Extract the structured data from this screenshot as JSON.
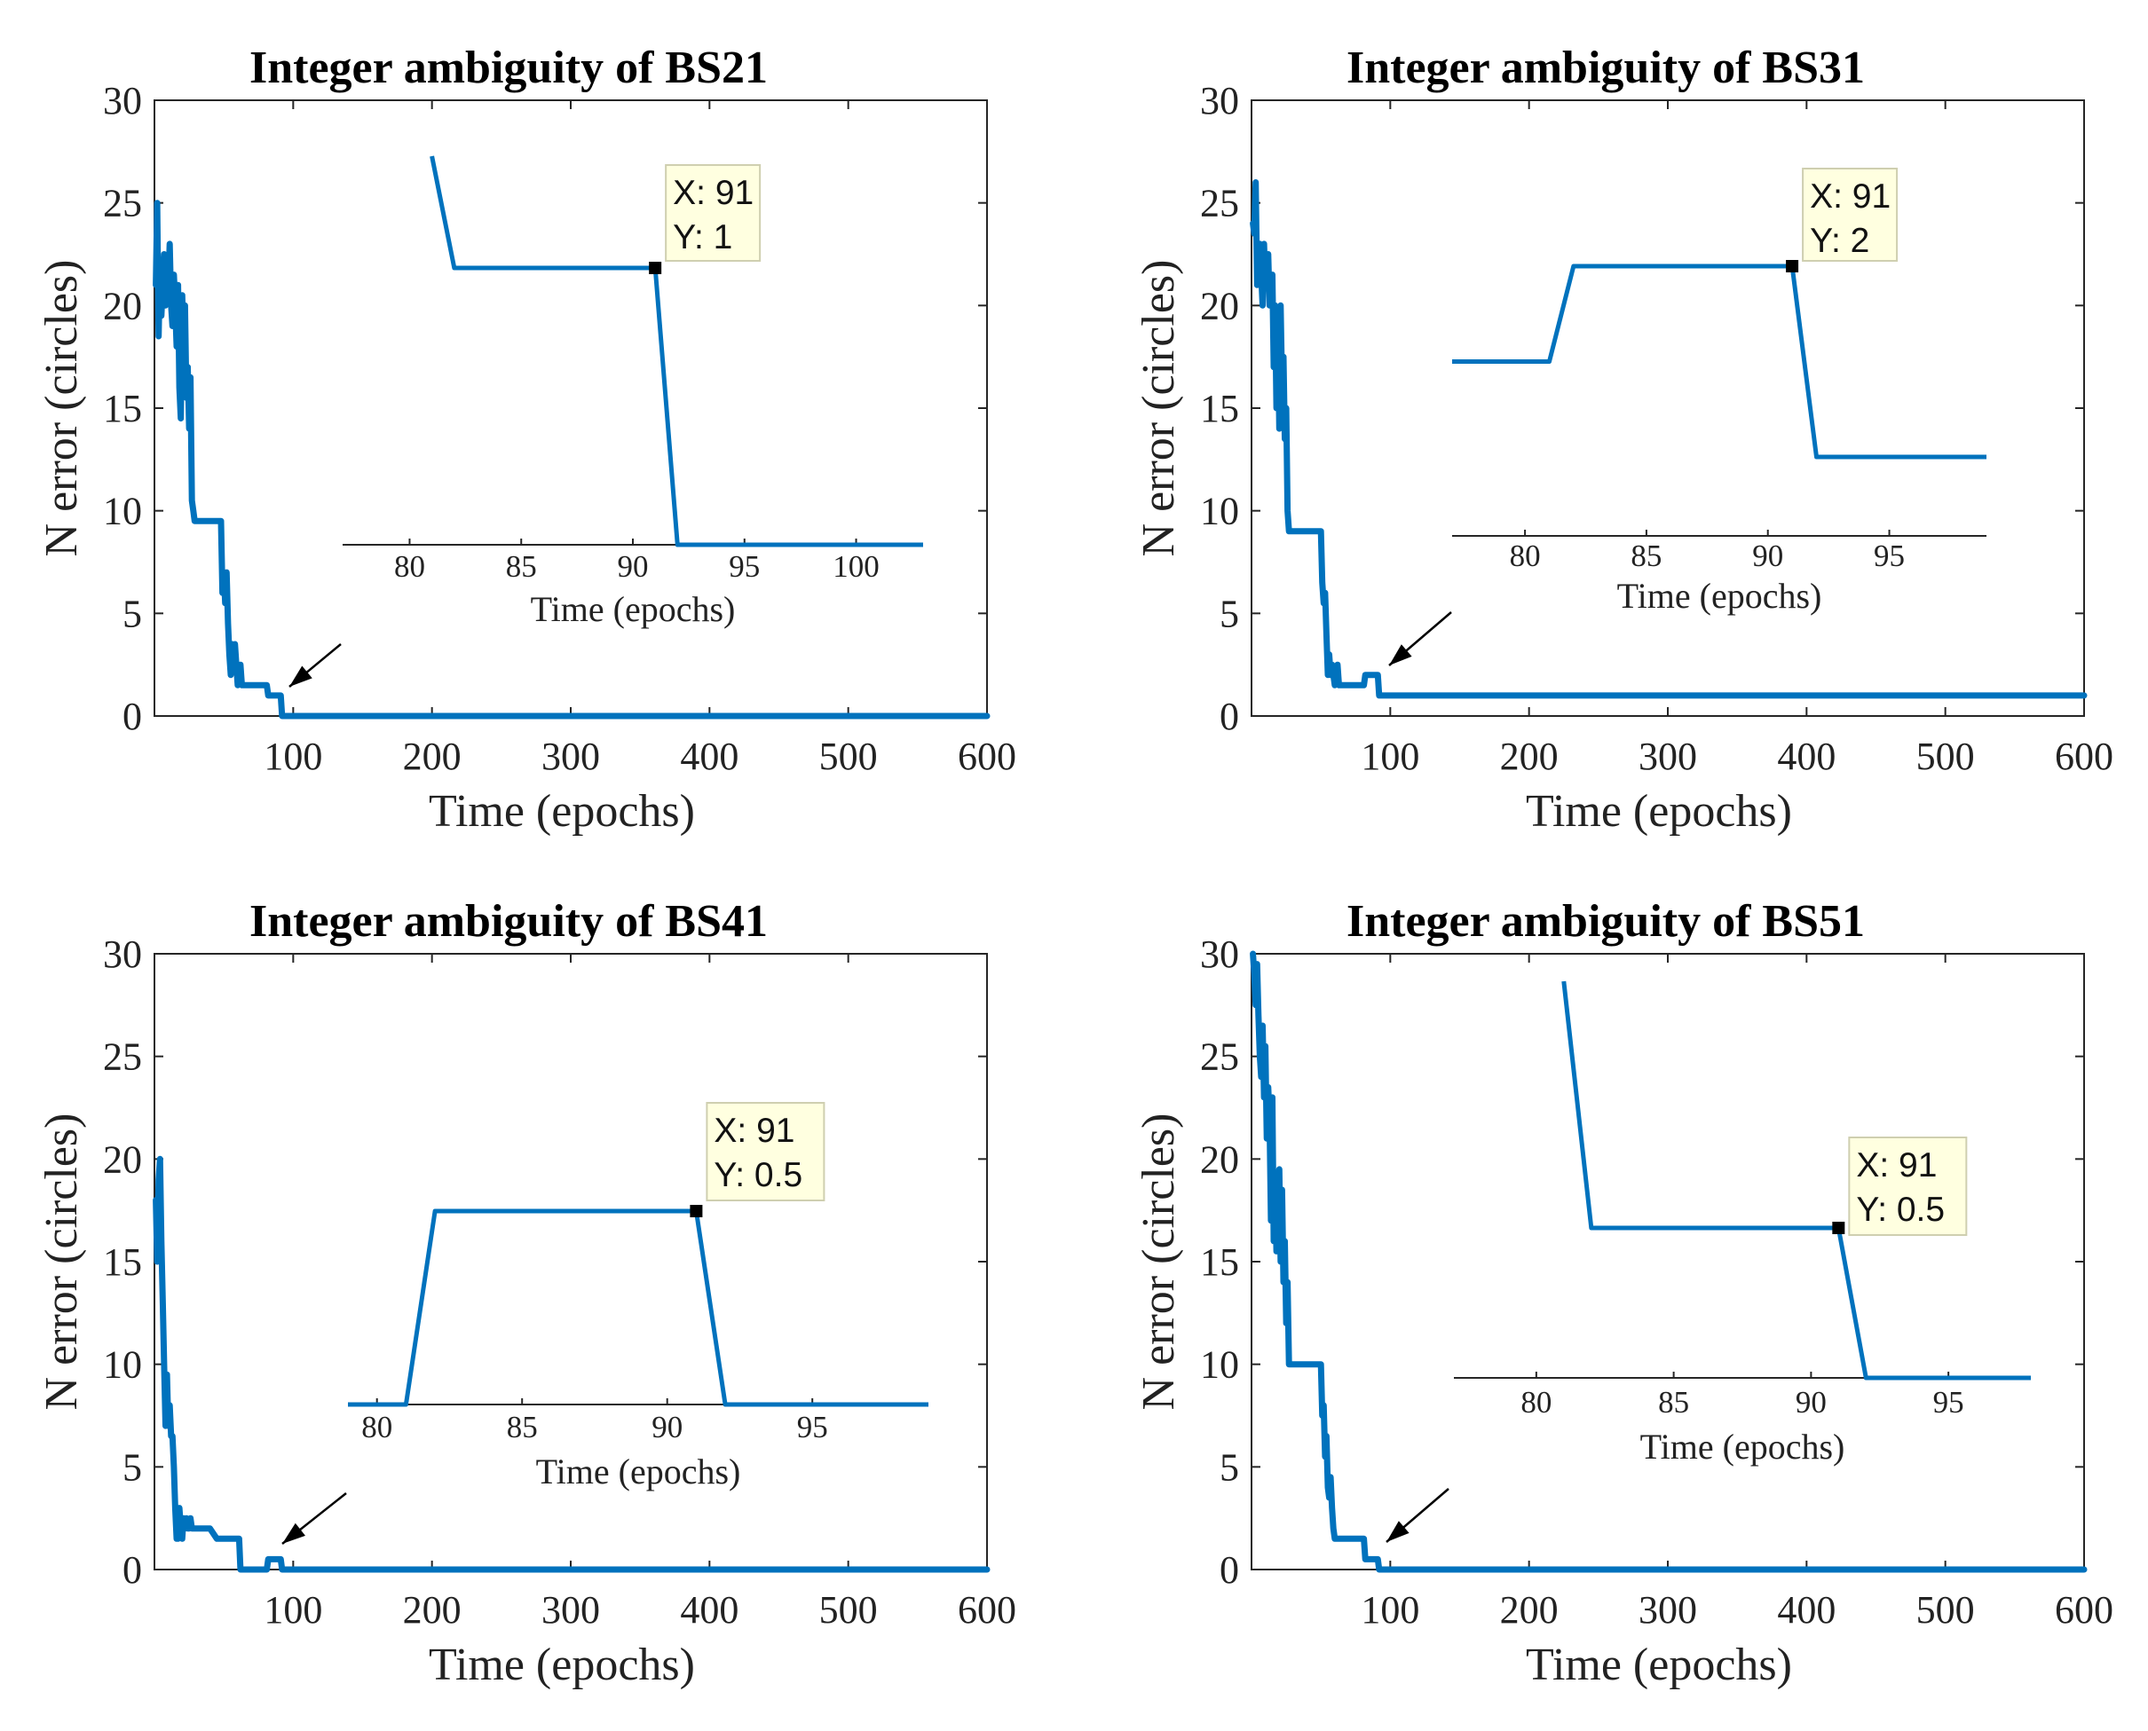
{
  "chart_data": [
    {
      "type": "line",
      "title": "Integer ambiguity of BS21",
      "xlabel": "Time (epochs)",
      "ylabel": "N error (circles)",
      "xlim": [
        0,
        600
      ],
      "ylim": [
        0,
        30
      ],
      "xticks": [
        100,
        200,
        300,
        400,
        500,
        600
      ],
      "yticks": [
        0,
        5,
        10,
        15,
        20,
        25,
        30
      ],
      "grid": false,
      "color": "#0072BD",
      "series": [
        {
          "x": [
            1,
            2,
            3,
            4,
            5,
            6,
            7,
            8,
            9,
            10,
            11,
            12,
            13,
            14,
            15,
            16,
            17,
            18,
            19,
            20,
            21,
            22,
            23,
            24,
            25,
            26,
            27,
            28,
            29,
            30,
            31,
            32,
            33,
            34,
            35,
            36,
            37,
            38,
            39,
            40,
            45,
            48,
            49,
            50,
            51,
            52,
            53,
            54,
            55,
            56,
            57,
            58,
            60,
            62,
            63,
            64,
            65,
            70,
            75,
            80,
            81,
            82,
            88,
            90,
            91,
            92,
            100,
            200,
            300,
            400,
            500,
            600
          ],
          "y": [
            21,
            25,
            18.5,
            22,
            19.5,
            21,
            22.5,
            20,
            22,
            21,
            23,
            20,
            19,
            21.5,
            20,
            18,
            21,
            16,
            14.5,
            20.5,
            18,
            20,
            15.5,
            17,
            14,
            16.5,
            10.5,
            10,
            9.5,
            9.5,
            9.5,
            9.5,
            9.5,
            9.5,
            9.5,
            9.5,
            9.5,
            9.5,
            9.5,
            9.5,
            9.5,
            9.5,
            6,
            7,
            5.5,
            7,
            4.5,
            3,
            2,
            3.5,
            2.5,
            3.5,
            1.5,
            2.5,
            1.5,
            1.5,
            1.5,
            1.5,
            1.5,
            1.5,
            1.5,
            1,
            1,
            1,
            1,
            0,
            0,
            0,
            0,
            0,
            0,
            0
          ]
        }
      ],
      "inset": {
        "xlabel": "Time (epochs)",
        "xlim": [
          77,
          103
        ],
        "xticks": [
          80,
          85,
          90,
          95,
          100
        ],
        "x": [
          81,
          82,
          91,
          92,
          103
        ],
        "y": [
          1.5,
          1,
          1,
          0,
          0
        ],
        "datatip": {
          "x_text": "X: 91",
          "y_text": "Y: 1",
          "x": 91,
          "y": 1
        }
      }
    },
    {
      "type": "line",
      "title": "Integer ambiguity of BS31",
      "xlabel": "Time (epochs)",
      "ylabel": "N error (circles)",
      "xlim": [
        0,
        600
      ],
      "ylim": [
        0,
        30
      ],
      "xticks": [
        100,
        200,
        300,
        400,
        500,
        600
      ],
      "yticks": [
        0,
        5,
        10,
        15,
        20,
        25,
        30
      ],
      "grid": false,
      "color": "#0072BD",
      "series": [
        {
          "x": [
            1,
            2,
            3,
            4,
            5,
            6,
            7,
            8,
            9,
            10,
            11,
            12,
            13,
            14,
            15,
            16,
            17,
            18,
            19,
            20,
            21,
            22,
            23,
            24,
            25,
            26,
            27,
            28,
            29,
            30,
            31,
            32,
            33,
            34,
            35,
            36,
            37,
            38,
            39,
            40,
            45,
            50,
            51,
            52,
            53,
            54,
            55,
            56,
            57,
            58,
            60,
            62,
            63,
            65,
            70,
            75,
            80,
            81,
            82,
            88,
            90,
            91,
            92,
            100,
            200,
            300,
            400,
            500,
            600
          ],
          "y": [
            24,
            23.5,
            26,
            21,
            22,
            23,
            21.5,
            20,
            23,
            21,
            22,
            22.5,
            20,
            20,
            21.5,
            17,
            20,
            15,
            19.5,
            14,
            20,
            16,
            17.5,
            13.5,
            15,
            10,
            9,
            9,
            9,
            9,
            9,
            9,
            9,
            9,
            9,
            9,
            9,
            9,
            9,
            9,
            9,
            9,
            6.5,
            5.5,
            6,
            4,
            2,
            3,
            2,
            2.5,
            1.5,
            2.5,
            1.5,
            1.5,
            1.5,
            1.5,
            1.5,
            1.5,
            2,
            2,
            2,
            2,
            1,
            1,
            1,
            1,
            1,
            1,
            1
          ]
        }
      ],
      "inset": {
        "xlabel": "Time (epochs)",
        "xlim": [
          77,
          99
        ],
        "xticks": [
          80,
          85,
          90,
          95
        ],
        "x": [
          77,
          81,
          82,
          91,
          92,
          99
        ],
        "y": [
          1.5,
          1.5,
          2,
          2,
          1,
          1
        ],
        "datatip": {
          "x_text": "X: 91",
          "y_text": "Y: 2",
          "x": 91,
          "y": 2
        }
      }
    },
    {
      "type": "line",
      "title": "Integer ambiguity of BS41",
      "xlabel": "Time (epochs)",
      "ylabel": "N error (circles)",
      "xlim": [
        0,
        600
      ],
      "ylim": [
        0,
        30
      ],
      "xticks": [
        100,
        200,
        300,
        400,
        500,
        600
      ],
      "yticks": [
        0,
        5,
        10,
        15,
        20,
        25,
        30
      ],
      "grid": false,
      "color": "#0072BD",
      "series": [
        {
          "x": [
            1,
            2,
            3,
            4,
            5,
            6,
            7,
            8,
            9,
            10,
            11,
            12,
            13,
            14,
            15,
            16,
            17,
            18,
            19,
            20,
            21,
            22,
            23,
            24,
            25,
            26,
            27,
            28,
            29,
            30,
            32,
            35,
            40,
            45,
            50,
            55,
            58,
            60,
            61,
            62,
            80,
            81,
            82,
            88,
            90,
            91,
            92,
            100,
            200,
            300,
            400,
            500,
            600
          ],
          "y": [
            18,
            15,
            19,
            20,
            16,
            13,
            10,
            7,
            9.5,
            7,
            8,
            6.5,
            6.5,
            5,
            3,
            1.5,
            1.5,
            3,
            2,
            1.5,
            2.5,
            2,
            2.5,
            2,
            2,
            2.5,
            2,
            2,
            2,
            2,
            2,
            2,
            2,
            1.5,
            1.5,
            1.5,
            1.5,
            1.5,
            1.5,
            0,
            0,
            0,
            0.5,
            0.5,
            0.5,
            0.5,
            0,
            0,
            0,
            0,
            0,
            0,
            0
          ]
        }
      ],
      "inset": {
        "xlabel": "Time (epochs)",
        "xlim": [
          79,
          99
        ],
        "xticks": [
          80,
          85,
          90,
          95
        ],
        "x": [
          79,
          81,
          82,
          91,
          92,
          99
        ],
        "y": [
          0,
          0,
          0.5,
          0.5,
          0,
          0
        ],
        "datatip": {
          "x_text": "X: 91",
          "y_text": "Y: 0.5",
          "x": 91,
          "y": 0.5
        }
      }
    },
    {
      "type": "line",
      "title": "Integer ambiguity of BS51",
      "xlabel": "Time (epochs)",
      "ylabel": "N error (circles)",
      "xlim": [
        0,
        600
      ],
      "ylim": [
        0,
        30
      ],
      "xticks": [
        100,
        200,
        300,
        400,
        500,
        600
      ],
      "yticks": [
        0,
        5,
        10,
        15,
        20,
        25,
        30
      ],
      "grid": false,
      "color": "#0072BD",
      "series": [
        {
          "x": [
            1,
            2,
            3,
            4,
            5,
            6,
            7,
            8,
            9,
            10,
            11,
            12,
            13,
            14,
            15,
            16,
            17,
            18,
            19,
            20,
            21,
            22,
            23,
            24,
            25,
            26,
            27,
            28,
            29,
            30,
            31,
            32,
            33,
            34,
            35,
            40,
            45,
            50,
            51,
            52,
            53,
            54,
            55,
            56,
            57,
            58,
            59,
            60,
            62,
            65,
            70,
            75,
            80,
            81,
            82,
            88,
            90,
            91,
            92,
            100,
            200,
            300,
            400,
            500,
            600
          ],
          "y": [
            30,
            29,
            27.5,
            29.5,
            27,
            25,
            24,
            26.5,
            23,
            25.5,
            21,
            23.5,
            22,
            17,
            23,
            16,
            19,
            15.5,
            18,
            19.5,
            15,
            18.5,
            14,
            16,
            12,
            14,
            10,
            10,
            10,
            10,
            10,
            10,
            10,
            10,
            10,
            10,
            10,
            10,
            7.5,
            8,
            5.5,
            6.5,
            4,
            3.5,
            4.5,
            3,
            2,
            1.5,
            1.5,
            1.5,
            1.5,
            1.5,
            1.5,
            1.5,
            0.5,
            0.5,
            0.5,
            0.5,
            0,
            0,
            0,
            0,
            0,
            0,
            0
          ]
        }
      ],
      "inset": {
        "xlabel": "Time (epochs)",
        "xlim": [
          77,
          98
        ],
        "xticks": [
          80,
          85,
          90,
          95
        ],
        "x": [
          81,
          82,
          91,
          92,
          98
        ],
        "y": [
          1.5,
          0.5,
          0.5,
          0,
          0
        ],
        "datatip": {
          "x_text": "X: 91",
          "y_text": "Y: 0.5",
          "x": 91,
          "y": 0.5
        }
      }
    }
  ]
}
